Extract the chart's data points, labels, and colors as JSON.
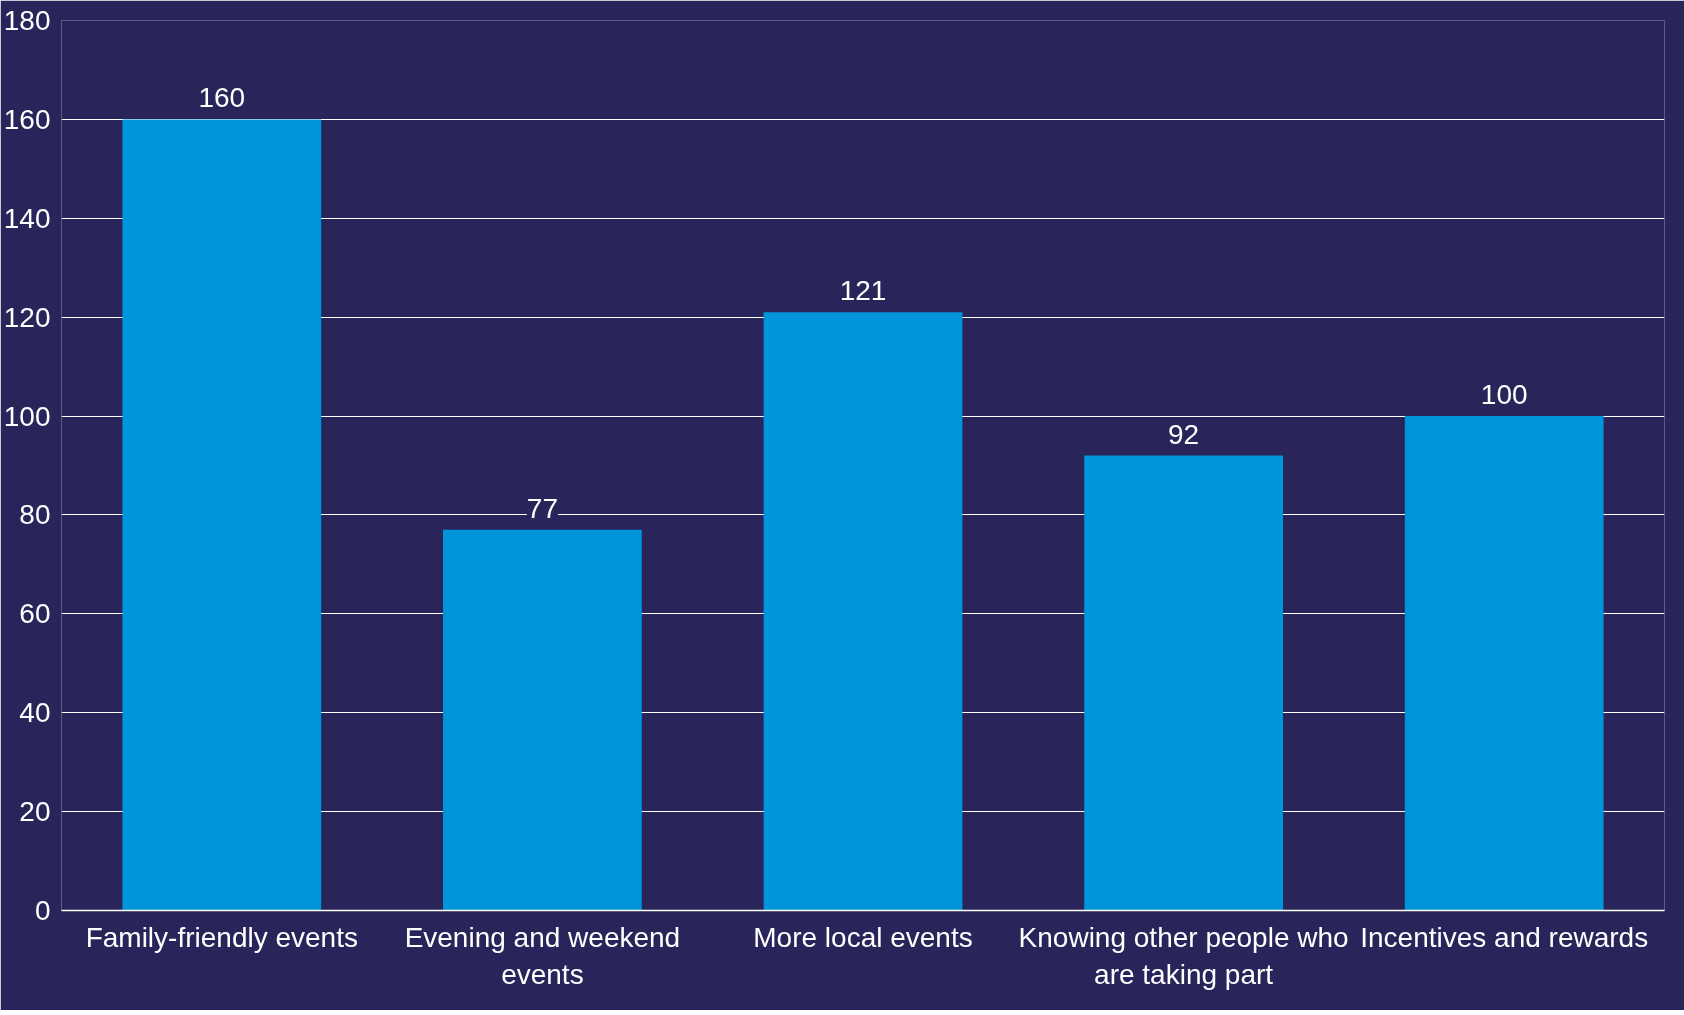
{
  "chart_data": {
    "type": "bar",
    "categories": [
      "Family-friendly events",
      "Evening and weekend events",
      "More local events",
      "Knowing other people who are taking part",
      "Incentives and rewards"
    ],
    "values": [
      160,
      77,
      121,
      92,
      100
    ],
    "color": "#0095db",
    "ylim": [
      0,
      180
    ],
    "yticks": [
      0,
      20,
      40,
      60,
      80,
      100,
      120,
      140,
      160,
      180
    ],
    "grid": "y",
    "data_labels": true
  }
}
